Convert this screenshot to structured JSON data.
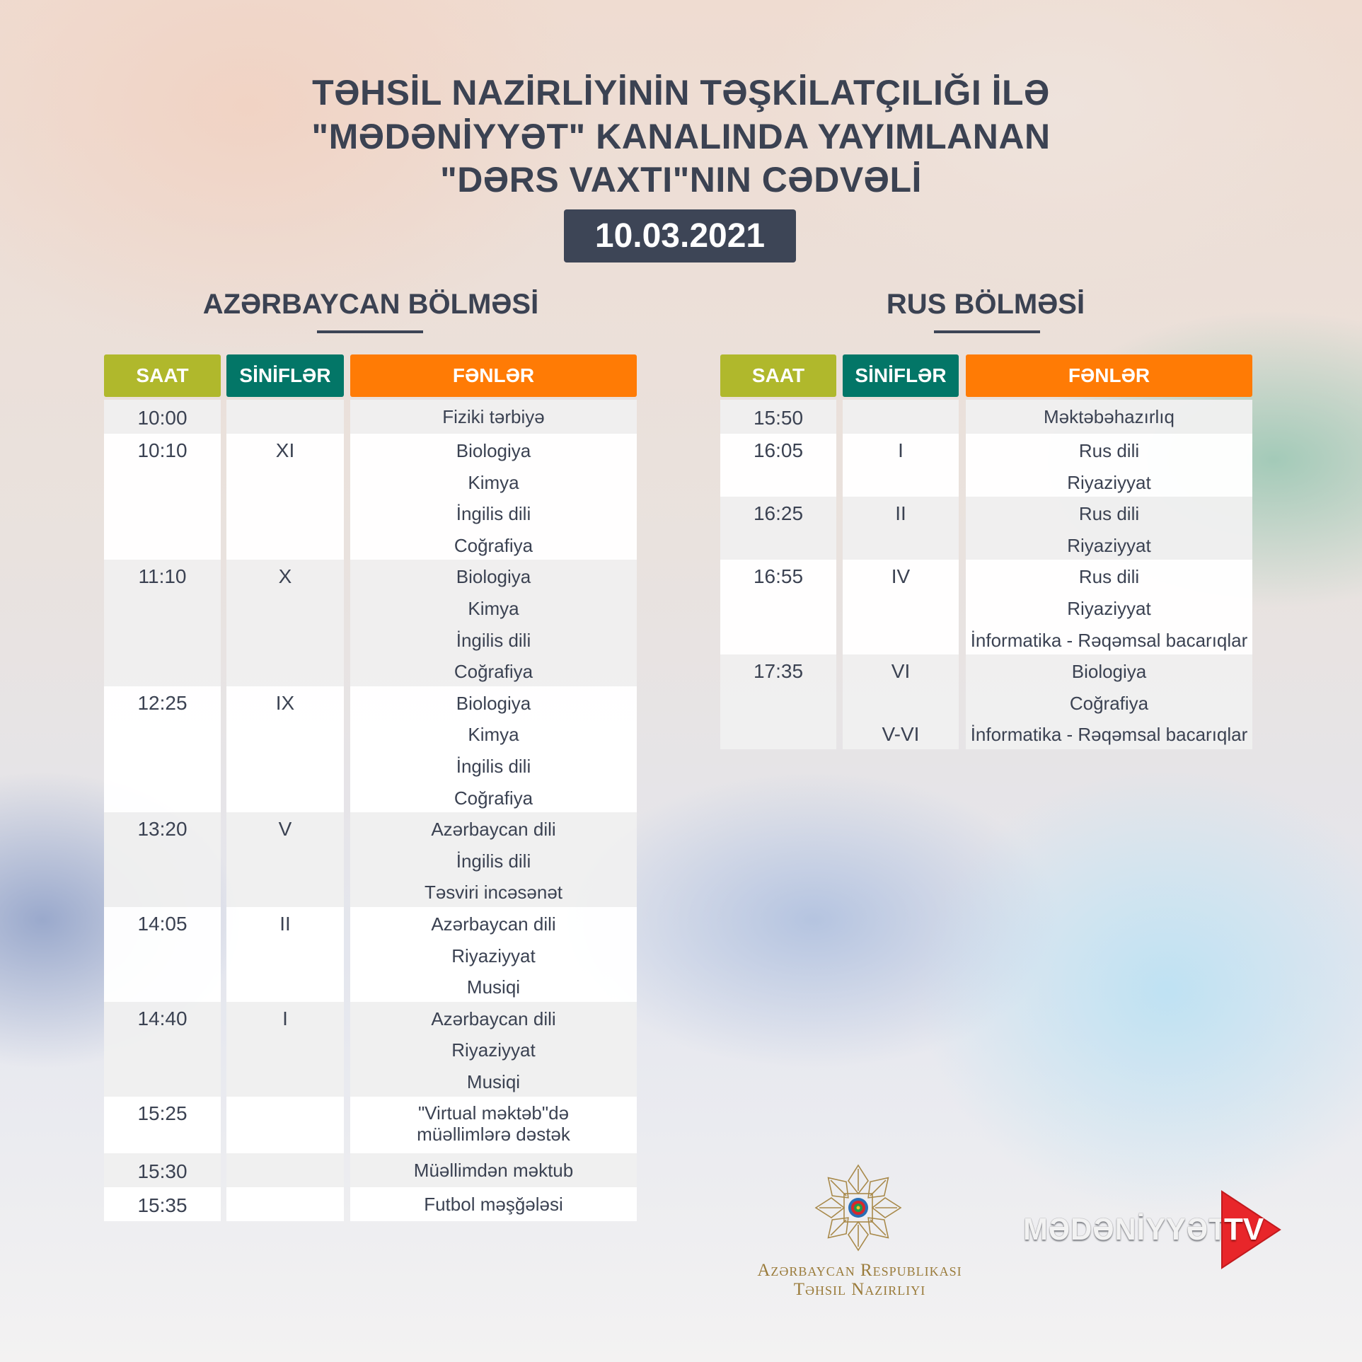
{
  "title": {
    "line1": "TƏHSİL NAZİRLİYİNİN TƏŞKİLATÇILIĞI İLƏ",
    "line2": "\"MƏDƏNİYYƏT\" KANALINDA YAYIMLANAN",
    "line3": "\"DƏRS VAXTI\"NIN CƏDVƏLİ"
  },
  "date": "10.03.2021",
  "colors": {
    "saat": "#b0b82c",
    "sinifler": "#037667",
    "fenler": "#ff7b05",
    "text": "#3b4252",
    "dark": "#3d4556"
  },
  "headers": {
    "saat": "SAAT",
    "sinifler": "SİNİFLƏR",
    "fenler": "FƏNLƏR"
  },
  "az": {
    "heading": "AZƏRBAYCAN BÖLMƏSİ",
    "rows": [
      {
        "time": "10:00",
        "classes": [
          ""
        ],
        "subjects": [
          "Fiziki tərbiyə"
        ]
      },
      {
        "time": "10:10",
        "classes": [
          "XI"
        ],
        "subjects": [
          "Biologiya",
          "Kimya",
          "İngilis dili",
          "Coğrafiya"
        ]
      },
      {
        "time": "11:10",
        "classes": [
          "X"
        ],
        "subjects": [
          "Biologiya",
          "Kimya",
          "İngilis dili",
          "Coğrafiya"
        ]
      },
      {
        "time": "12:25",
        "classes": [
          "IX"
        ],
        "subjects": [
          "Biologiya",
          "Kimya",
          "İngilis dili",
          "Coğrafiya"
        ]
      },
      {
        "time": "13:20",
        "classes": [
          "V"
        ],
        "subjects": [
          "Azərbaycan dili",
          "İngilis dili",
          "Təsviri incəsənət"
        ]
      },
      {
        "time": "14:05",
        "classes": [
          "II"
        ],
        "subjects": [
          "Azərbaycan dili",
          "Riyaziyyat",
          "Musiqi"
        ]
      },
      {
        "time": "14:40",
        "classes": [
          "I"
        ],
        "subjects": [
          "Azərbaycan dili",
          "Riyaziyyat",
          "Musiqi"
        ]
      },
      {
        "time": "15:25",
        "classes": [
          ""
        ],
        "subjects": [
          "\"Virtual məktəb\"də",
          "müəllimlərə dəstək"
        ]
      },
      {
        "time": "15:30",
        "classes": [
          ""
        ],
        "subjects": [
          "Müəllimdən məktub"
        ]
      },
      {
        "time": "15:35",
        "classes": [
          ""
        ],
        "subjects": [
          "Futbol məşğələsi"
        ]
      }
    ]
  },
  "ru": {
    "heading": "RUS BÖLMƏSİ",
    "rows": [
      {
        "time": "15:50",
        "classes": [
          ""
        ],
        "subjects": [
          "Məktəbəhazırlıq"
        ]
      },
      {
        "time": "16:05",
        "classes": [
          "I"
        ],
        "subjects": [
          "Rus dili",
          "Riyaziyyat"
        ]
      },
      {
        "time": "16:25",
        "classes": [
          "II"
        ],
        "subjects": [
          "Rus dili",
          "Riyaziyyat"
        ]
      },
      {
        "time": "16:55",
        "classes": [
          "IV"
        ],
        "subjects": [
          "Rus dili",
          "Riyaziyyat",
          "İnformatika - Rəqəmsal bacarıqlar"
        ]
      },
      {
        "time": "17:35",
        "classes": [
          "VI",
          "",
          "V-VI"
        ],
        "subjects": [
          "Biologiya",
          "Coğrafiya",
          "İnformatika - Rəqəmsal bacarıqlar"
        ]
      }
    ]
  },
  "footer": {
    "ministry_logo": {
      "line1": "Azərbaycan Respublikası",
      "line2": "Təhsil Nazirliyi",
      "icon": "ministry-emblem"
    },
    "tv_logo": {
      "text": "MƏDƏNİYYƏT",
      "tv": "TV",
      "icon": "play-triangle"
    }
  }
}
